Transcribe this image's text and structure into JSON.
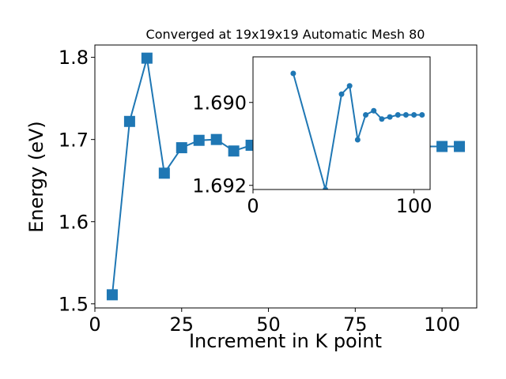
{
  "chart_data": [
    {
      "type": "line",
      "title": "Converged at 19x19x19 Automatic Mesh 80",
      "xlabel": "Increment in K point",
      "ylabel": "Energy (eV)",
      "xlim": [
        0,
        110
      ],
      "ylim": [
        1.495,
        1.815
      ],
      "xticks": [
        0,
        25,
        50,
        75,
        100
      ],
      "yticks": [
        1.5,
        1.6,
        1.7,
        1.8
      ],
      "xtick_labels": [
        "0",
        "25",
        "50",
        "75",
        "100"
      ],
      "ytick_labels": [
        "1.5",
        "1.6",
        "1.7",
        "1.8"
      ],
      "marker": "square",
      "color": "#1f77b4",
      "grid": false,
      "series": [
        {
          "x": [
            5,
            10,
            15,
            20,
            25,
            30,
            35,
            40,
            45,
            50,
            55,
            60,
            65,
            70,
            75,
            80,
            85,
            90,
            95,
            100,
            105
          ],
          "values": [
            1.511,
            1.722,
            1.799,
            1.659,
            1.69,
            1.699,
            1.7,
            1.686,
            1.693,
            1.6915,
            1.6915,
            1.6915,
            1.6915,
            1.6915,
            1.6915,
            1.6915,
            1.6915,
            1.6915,
            1.6915,
            1.6915,
            1.6915
          ]
        }
      ]
    },
    {
      "type": "line",
      "title": "",
      "xlabel": "",
      "ylabel": "",
      "xlim": [
        0,
        110
      ],
      "ylim": [
        1.6889,
        1.6921
      ],
      "y_inverted": true,
      "xticks": [
        0,
        100
      ],
      "yticks": [
        1.69,
        1.692
      ],
      "xtick_labels": [
        "0",
        "100"
      ],
      "ytick_labels": [
        "1.690",
        "1.692"
      ],
      "marker": "circle",
      "color": "#1f77b4",
      "grid": false,
      "series": [
        {
          "x": [
            25,
            45,
            55,
            60,
            65,
            70,
            75,
            80,
            85,
            90,
            95,
            100,
            105
          ],
          "values": [
            1.6893,
            1.6921,
            1.6898,
            1.6896,
            1.6909,
            1.6903,
            1.6902,
            1.6904,
            1.69035,
            1.6903,
            1.6903,
            1.6903,
            1.6903
          ]
        }
      ]
    }
  ]
}
